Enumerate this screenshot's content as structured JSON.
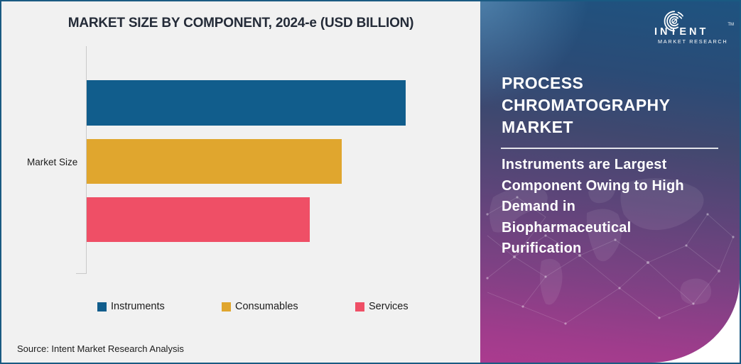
{
  "frame": {
    "border_color": "#1a5a82",
    "chart_background": "#f1f1f1"
  },
  "chart": {
    "title": "MARKET SIZE BY COMPONENT, 2024-e (USD BILLION)",
    "axis_label": "Market Size",
    "source": "Source: Intent Market Research Analysis"
  },
  "chart_data": {
    "type": "bar",
    "orientation": "horizontal",
    "title": "MARKET SIZE BY COMPONENT, 2024-e (USD BILLION)",
    "categories": [
      "Instruments",
      "Consumables",
      "Services"
    ],
    "values": [
      100,
      80,
      70
    ],
    "value_note": "bars carry no numeric labels; values are relative lengths as % of largest bar",
    "colors": [
      "#115d8c",
      "#e0a62e",
      "#ef4f66"
    ],
    "ylabel": "Market Size",
    "xlabel": "",
    "legend": [
      "Instruments",
      "Consumables",
      "Services"
    ],
    "legend_position": "bottom",
    "grid": false
  },
  "panel": {
    "title_lines": [
      "PROCESS",
      "CHROMATOGRAPHY",
      "MARKET"
    ],
    "subtitle_lines": [
      "Instruments are Largest",
      "Component Owing to High",
      "Demand in",
      "Biopharmaceutical",
      "Purification"
    ],
    "gradient_top": "#1e5380",
    "gradient_bottom": "#ab3b8f"
  },
  "logo": {
    "brand": "INTENT",
    "trademark": "TM",
    "tagline": "MARKET RESEARCH"
  }
}
